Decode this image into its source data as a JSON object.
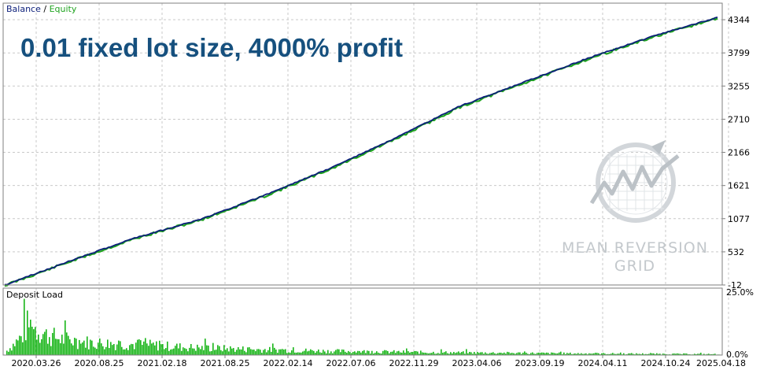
{
  "legend": {
    "balance_label": "Balance",
    "separator": " / ",
    "equity_label": "Equity"
  },
  "headline": "0.01 fixed lot size, 4000% profit",
  "watermark": {
    "line1": "MEAN REVERSION",
    "line2": "GRID"
  },
  "colors": {
    "balance": "#0c1f7a",
    "equity": "#1fa31f",
    "deposit_load": "#17b517",
    "headline": "#16507e",
    "grid": "#c9c9c9"
  },
  "chart_data": [
    {
      "type": "line",
      "title": "",
      "x": [
        "2020.03.26",
        "2020.08.25",
        "2021.02.18",
        "2021.08.25",
        "2022.02.14",
        "2022.07.06",
        "2022.11.29",
        "2023.04.06",
        "2023.09.19",
        "2024.04.11",
        "2024.10.24",
        "2025.04.18"
      ],
      "x_ticks": [
        "2020.03.26",
        "2020.08.25",
        "2021.02.18",
        "2021.08.25",
        "2022.02.14",
        "2022.07.06",
        "2022.11.29",
        "2023.04.06",
        "2023.09.19",
        "2024.04.11",
        "2024.10.24",
        "2025.04.18"
      ],
      "y_ticks": [
        -12,
        532,
        1077,
        1621,
        2166,
        2710,
        3255,
        3799,
        4344
      ],
      "ylim": [
        -12,
        4616
      ],
      "grid": true,
      "legend": "top-left",
      "series": [
        {
          "name": "Balance",
          "values": [
            -12,
            380,
            760,
            1060,
            1460,
            1900,
            2390,
            2920,
            3320,
            3720,
            4080,
            4390
          ]
        },
        {
          "name": "Equity",
          "values": [
            -20,
            370,
            748,
            1050,
            1445,
            1885,
            2375,
            2905,
            3305,
            3705,
            4065,
            4375
          ]
        }
      ]
    },
    {
      "type": "bar",
      "title": "Deposit Load",
      "y_ticks": [
        "25.0%",
        "0.0%"
      ],
      "ylim": [
        0,
        25
      ],
      "unit": "%",
      "profile": [
        [
          0,
          2
        ],
        [
          0.02,
          8
        ],
        [
          0.03,
          14
        ],
        [
          0.04,
          12
        ],
        [
          0.055,
          9
        ],
        [
          0.08,
          7
        ],
        [
          0.12,
          5.5
        ],
        [
          0.2,
          4.5
        ],
        [
          0.25,
          3.5
        ],
        [
          0.35,
          2.5
        ],
        [
          0.45,
          1.8
        ],
        [
          0.6,
          1.2
        ],
        [
          0.8,
          0.7
        ],
        [
          1,
          0.4
        ]
      ]
    }
  ]
}
